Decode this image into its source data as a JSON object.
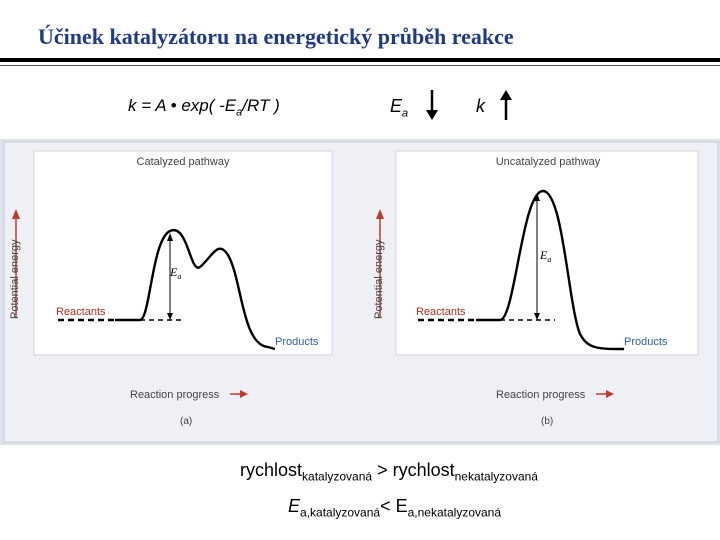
{
  "slide": {
    "title": "Účinek katalyzátoru na energetický průběh reakce",
    "formula_main": "k = A • exp( -E",
    "formula_sub": "a",
    "formula_tail": "/RT )",
    "ea_symbol": "E",
    "ea_sub": "a",
    "k_symbol": "k",
    "ea_arrow": "down",
    "k_arrow": "up"
  },
  "figure": {
    "panel_a": {
      "title": "Catalyzed pathway",
      "ylabel": "Potential energy",
      "xlabel": "Reaction progress",
      "reactants": "Reactants",
      "products": "Products",
      "ea_main": "E",
      "ea_sub": "a",
      "caption": "(a)"
    },
    "panel_b": {
      "title": "Uncatalyzed pathway",
      "ylabel": "Potential energy",
      "xlabel": "Reaction progress",
      "reactants": "Reactants",
      "products": "Products",
      "ea_main": "E",
      "ea_sub": "a",
      "caption": "(b)"
    }
  },
  "bottom": {
    "line1_main": "rychlost",
    "line1_sub": "katalyzovaná",
    "line1_op": " > rychlost",
    "line1_sub2": "nekatalyzovaná",
    "line2_main": "E",
    "line2_sub": "a,katalyzovaná",
    "line2_op": "< E",
    "line2_sub2": "a,nekatalyzovaná"
  }
}
